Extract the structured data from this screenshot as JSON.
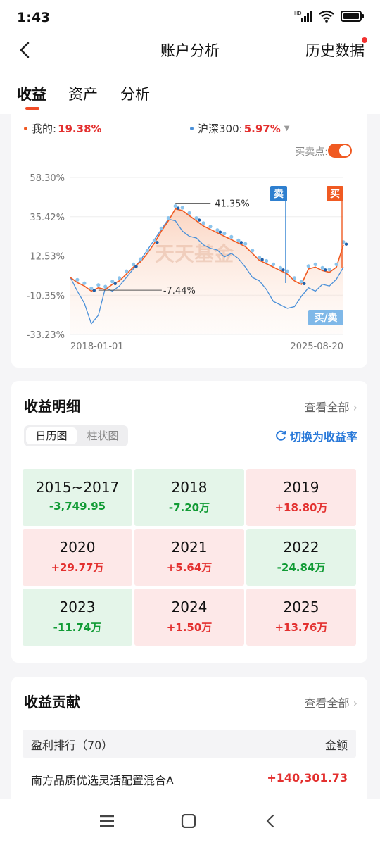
{
  "status": {
    "time": "1:43"
  },
  "nav": {
    "title": "账户分析",
    "history": "历史数据"
  },
  "tabs": [
    {
      "label": "收益"
    },
    {
      "label": "资产"
    },
    {
      "label": "分析"
    }
  ],
  "overview": {
    "mine_label": "我的:",
    "mine_value": "19.38%",
    "benchmark_label": "沪深300:",
    "benchmark_value": "5.97%",
    "buy_sell_points_label": "买卖点:",
    "colors": {
      "mine": "#f05a22",
      "benchmark": "#4a90d9"
    }
  },
  "chart_data": {
    "type": "line",
    "y_ticks": [
      "58.30%",
      "35.42%",
      "12.53%",
      "-10.35%",
      "-33.23%"
    ],
    "x_ticks": [
      "2018-01-01",
      "2025-08-20"
    ],
    "ylim": [
      -33.23,
      58.3
    ],
    "annotations": {
      "max": "41.35%",
      "min": "-7.44%",
      "sell": "卖",
      "buy": "买",
      "buy_sell": "买/卖"
    },
    "watermark": "天天基金",
    "series": [
      {
        "name": "我的",
        "values": [
          0,
          -3,
          -5,
          -8,
          -6,
          -7,
          -4,
          -2,
          2,
          6,
          9,
          14,
          20,
          27,
          33,
          40,
          39,
          36,
          33,
          30,
          28,
          26,
          24,
          22,
          20,
          18,
          14,
          10,
          8,
          6,
          4,
          2,
          -2,
          -4,
          5,
          6,
          4,
          3,
          6,
          19
        ]
      },
      {
        "name": "沪深300",
        "values": [
          0,
          -8,
          -15,
          -27,
          -22,
          -6,
          -8,
          -5,
          0,
          5,
          10,
          16,
          22,
          28,
          34,
          33,
          27,
          24,
          23,
          19,
          17,
          16,
          12,
          14,
          11,
          6,
          0,
          -2,
          -7,
          -14,
          -16,
          -18,
          -17,
          -11,
          -6,
          -8,
          -4,
          -5,
          -1,
          6
        ]
      }
    ]
  },
  "detail": {
    "title": "收益明细",
    "see_all": "查看全部",
    "seg_calendar": "日历图",
    "seg_bar": "柱状图",
    "switch_rate": "切换为收益率",
    "years": [
      {
        "year": "2015~2017",
        "value": "-3,749.95",
        "tone": "green"
      },
      {
        "year": "2018",
        "value": "-7.20万",
        "tone": "green"
      },
      {
        "year": "2019",
        "value": "+18.80万",
        "tone": "red"
      },
      {
        "year": "2020",
        "value": "+29.77万",
        "tone": "red"
      },
      {
        "year": "2021",
        "value": "+5.64万",
        "tone": "red"
      },
      {
        "year": "2022",
        "value": "-24.84万",
        "tone": "green"
      },
      {
        "year": "2023",
        "value": "-11.74万",
        "tone": "green"
      },
      {
        "year": "2024",
        "value": "+1.50万",
        "tone": "red"
      },
      {
        "year": "2025",
        "value": "+13.76万",
        "tone": "red"
      }
    ]
  },
  "contribution": {
    "title": "收益贡献",
    "see_all": "查看全部",
    "rank_label": "盈利排行（70）",
    "amount_label": "金额",
    "rows": [
      {
        "name": "南方品质优选灵活配置混合A",
        "amount": "+140,301.73"
      }
    ]
  }
}
